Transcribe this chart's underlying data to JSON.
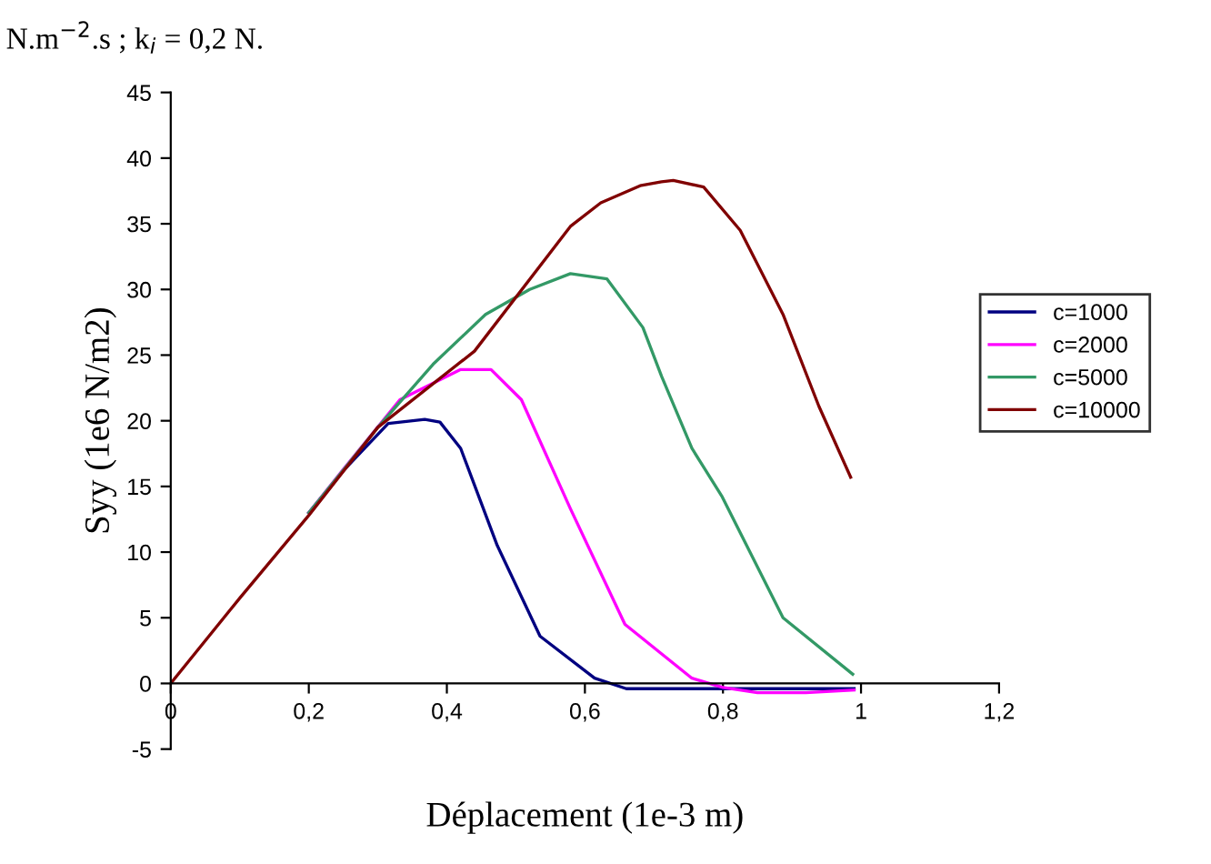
{
  "chart_data": {
    "type": "line",
    "xlabel": "Déplacement (1e-3 m)",
    "ylabel": "Syy (1e6 N/m2)",
    "annotations": [
      "N.m$^{−2}$.s ; k$_{i}$ = 0,2 N."
    ],
    "xlim": [
      0,
      1.2
    ],
    "xticks": [
      0,
      {
        "value": 0.2,
        "label": "0,2"
      },
      {
        "value": 0.4,
        "label": "0,4"
      },
      {
        "value": 0.6,
        "label": "0,6"
      },
      {
        "value": 0.8,
        "label": "0,8"
      },
      1,
      {
        "value": 1.2,
        "label": "1,2"
      }
    ],
    "ylim": [
      -5,
      45
    ],
    "yticks": [
      -5,
      0,
      5,
      10,
      15,
      20,
      25,
      30,
      35,
      40,
      45
    ],
    "grid": false,
    "legend": "right",
    "marker": "none",
    "line_style": "solid",
    "series": [
      {
        "name": "c=1000",
        "color": "#000080",
        "x": [
          0.2,
          0.25,
          0.315,
          0.368,
          0.39,
          0.42,
          0.473,
          0.535,
          0.614,
          0.66,
          0.8,
          0.99
        ],
        "values": [
          13,
          16.2,
          19.8,
          20.1,
          19.9,
          17.9,
          10.5,
          3.6,
          0.4,
          -0.4,
          -0.4,
          -0.4
        ]
      },
      {
        "name": "c=2000",
        "color": "#ff00ff",
        "x": [
          0.2,
          0.25,
          0.332,
          0.42,
          0.464,
          0.508,
          0.579,
          0.658,
          0.755,
          0.8,
          0.85,
          0.92,
          0.99
        ],
        "values": [
          13,
          16.3,
          21.6,
          23.9,
          23.9,
          21.6,
          13.3,
          4.5,
          0.4,
          -0.3,
          -0.7,
          -0.7,
          -0.5
        ]
      },
      {
        "name": "c=5000",
        "color": "#339966",
        "x": [
          0.2,
          0.3,
          0.38,
          0.456,
          0.52,
          0.579,
          0.632,
          0.684,
          0.711,
          0.755,
          0.799,
          0.887,
          0.988
        ],
        "values": [
          13,
          19.5,
          24.3,
          28.1,
          30.0,
          31.2,
          30.8,
          27.1,
          23.4,
          17.9,
          14.2,
          5.0,
          0.7
        ]
      },
      {
        "name": "c=10000",
        "color": "#800000",
        "x": [
          0,
          0.1,
          0.2,
          0.3,
          0.44,
          0.579,
          0.623,
          0.68,
          0.711,
          0.728,
          0.772,
          0.825,
          0.887,
          0.939,
          0.985
        ],
        "values": [
          0,
          6.5,
          12.8,
          19.5,
          25.3,
          34.8,
          36.6,
          37.9,
          38.2,
          38.3,
          37.8,
          34.5,
          28.1,
          21.1,
          15.7
        ]
      }
    ]
  }
}
